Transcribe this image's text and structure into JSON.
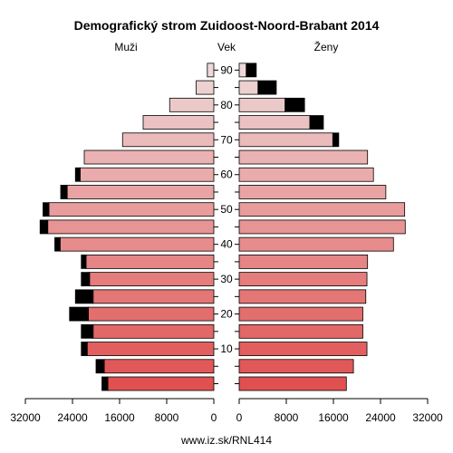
{
  "chart_data": {
    "type": "bar",
    "title": "Demografický strom Zuidoost-Noord-Brabant 2014",
    "left_label": "Muži",
    "center_label": "Vek",
    "right_label": "Ženy",
    "footer": "www.iz.sk/RNL414",
    "age_axis": {
      "ticks": [
        10,
        20,
        30,
        40,
        50,
        60,
        70,
        80,
        90
      ],
      "unit_years_per_group": 5
    },
    "x_axis": {
      "xlim": [
        0,
        32000
      ],
      "left_ticks": [
        "32000",
        "24000",
        "16000",
        "8000",
        "0"
      ],
      "right_ticks": [
        "0",
        "8000",
        "16000",
        "24000",
        "32000"
      ]
    },
    "age_groups": [
      "0-4",
      "5-9",
      "10-14",
      "15-19",
      "20-24",
      "25-29",
      "30-34",
      "35-39",
      "40-44",
      "45-49",
      "50-54",
      "55-59",
      "60-64",
      "65-69",
      "70-74",
      "75-79",
      "80-84",
      "85-89",
      "90+"
    ],
    "men_total": [
      19000,
      20000,
      22500,
      22500,
      24500,
      23500,
      22500,
      22500,
      27000,
      29500,
      29000,
      26000,
      23500,
      22000,
      15500,
      12000,
      7500,
      3000,
      1100
    ],
    "men_extra": [
      1000,
      1400,
      1000,
      2000,
      3200,
      3000,
      1400,
      800,
      900,
      1300,
      1000,
      1100,
      800,
      0,
      0,
      0,
      0,
      0,
      0
    ],
    "women_total": [
      18200,
      19400,
      21700,
      21000,
      21000,
      21500,
      21700,
      21800,
      26200,
      28200,
      28100,
      24900,
      22800,
      21800,
      16900,
      14300,
      11100,
      6300,
      2900
    ],
    "women_extra": [
      0,
      0,
      0,
      0,
      0,
      0,
      0,
      0,
      0,
      0,
      0,
      0,
      0,
      0,
      1000,
      2300,
      3300,
      3100,
      1700
    ],
    "colors": {
      "main_low": "#e05050",
      "main_high": "#eed8d8",
      "extra": "#000000",
      "axis": "#000000",
      "bar_outline": "#000000"
    }
  }
}
